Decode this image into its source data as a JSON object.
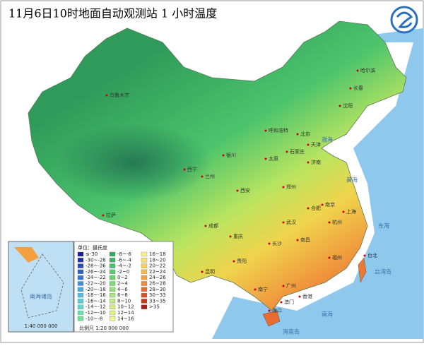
{
  "title": "11月6日10时地面自动观测站 1 小时温度",
  "legend": {
    "title": "单位：摄氏度",
    "items": [
      {
        "label": "≤-30",
        "color": "#1c1c9c"
      },
      {
        "label": "-30~-28",
        "color": "#2230b0"
      },
      {
        "label": "-28~-26",
        "color": "#2848c0"
      },
      {
        "label": "-26~-24",
        "color": "#2f60cc"
      },
      {
        "label": "-24~-22",
        "color": "#3878d4"
      },
      {
        "label": "-22~-20",
        "color": "#4090dc"
      },
      {
        "label": "-20~-18",
        "color": "#48a8e0"
      },
      {
        "label": "-18~-16",
        "color": "#50bce0"
      },
      {
        "label": "-16~-14",
        "color": "#58ccd8"
      },
      {
        "label": "-14~-12",
        "color": "#60d8c8"
      },
      {
        "label": "-12~-10",
        "color": "#68e0b0"
      },
      {
        "label": "-10~-8",
        "color": "#70e098"
      },
      {
        "label": "-8~-6",
        "color": "#3aa860"
      },
      {
        "label": "-6~-4",
        "color": "#44b466"
      },
      {
        "label": "-4~-2",
        "color": "#50c06c"
      },
      {
        "label": "-2~0",
        "color": "#5ccc70"
      },
      {
        "label": "0~2",
        "color": "#6ad474"
      },
      {
        "label": "2~4",
        "color": "#7edc78"
      },
      {
        "label": "4~6",
        "color": "#94e07c"
      },
      {
        "label": "6~8",
        "color": "#a8e480"
      },
      {
        "label": "8~10",
        "color": "#bce884"
      },
      {
        "label": "10~12",
        "color": "#d0ec88"
      },
      {
        "label": "12~14",
        "color": "#e0f08c"
      },
      {
        "label": "14~16",
        "color": "#eef290"
      },
      {
        "label": "16~18",
        "color": "#f8f090"
      },
      {
        "label": "18~20",
        "color": "#f8e070"
      },
      {
        "label": "20~22",
        "color": "#f8d058"
      },
      {
        "label": "22~24",
        "color": "#f8bc48"
      },
      {
        "label": "24~26",
        "color": "#f4a040"
      },
      {
        "label": "26~28",
        "color": "#f08838"
      },
      {
        "label": "28~30",
        "color": "#e86c30"
      },
      {
        "label": "30~33",
        "color": "#dc5028"
      },
      {
        "label": "33~35",
        "color": "#c83820"
      },
      {
        "label": ">35",
        "color": "#a02018"
      }
    ]
  },
  "scale": "比例尺  1:20 000 000",
  "inset": {
    "label": "南海诸岛",
    "scale": "1:40 000 000"
  },
  "cities": [
    "哈尔滨",
    "长春",
    "沈阳",
    "呼和浩特",
    "北京",
    "天津",
    "石家庄",
    "太原",
    "济南",
    "银川",
    "兰州",
    "西宁",
    "西安",
    "郑州",
    "乌鲁木齐",
    "拉萨",
    "成都",
    "重庆",
    "贵阳",
    "昆明",
    "南宁",
    "广州",
    "海口",
    "长沙",
    "南昌",
    "福州",
    "台北",
    "杭州",
    "上海",
    "南京",
    "合肥",
    "武汉",
    "香港",
    "澳门"
  ],
  "seas": [
    "渤海",
    "黄海",
    "东海",
    "南海",
    "台湾岛",
    "海南岛"
  ]
}
